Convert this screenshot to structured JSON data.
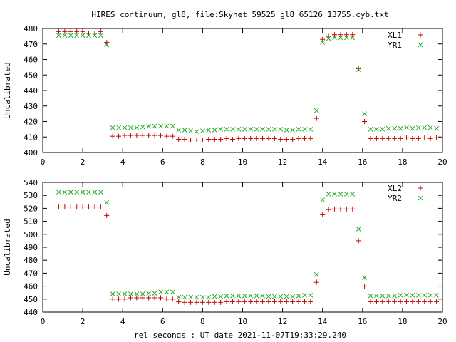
{
  "chart_data": {
    "title": "HIRES continuum, gl8, file:Skynet_59525_gl8_65126_13755.cyb.txt",
    "xlabel": "rel seconds : UT date 2021-11-07T19:33:29.240",
    "x_ticks": [
      0,
      2,
      4,
      6,
      8,
      10,
      12,
      14,
      16,
      18,
      20
    ],
    "xlim": [
      0,
      20
    ],
    "colors": {
      "red": "#cc0000",
      "green": "#22aa22"
    },
    "panels": [
      {
        "type": "scatter",
        "ylabel": "Uncalibrated",
        "ylim": [
          400,
          480
        ],
        "y_ticks": [
          400,
          410,
          420,
          430,
          440,
          450,
          460,
          470,
          480
        ],
        "legend_position": "top-right",
        "series": [
          {
            "name": "XL1",
            "marker": "plus",
            "color": "#cc0000",
            "x": [
              0.8,
              1.1,
              1.4,
              1.7,
              2.0,
              2.3,
              2.6,
              2.9,
              3.2,
              3.5,
              3.8,
              4.1,
              4.4,
              4.7,
              5.0,
              5.3,
              5.6,
              5.9,
              6.2,
              6.5,
              6.8,
              7.1,
              7.4,
              7.7,
              8.0,
              8.3,
              8.6,
              8.9,
              9.2,
              9.5,
              9.8,
              10.1,
              10.4,
              10.7,
              11.0,
              11.3,
              11.6,
              11.9,
              12.2,
              12.5,
              12.8,
              13.1,
              13.4,
              13.7,
              14.0,
              14.3,
              14.6,
              14.9,
              15.2,
              15.5,
              15.8,
              16.1,
              16.4,
              16.7,
              17.0,
              17.3,
              17.6,
              17.9,
              18.2,
              18.5,
              18.8,
              19.1,
              19.4,
              19.7
            ],
            "y": [
              478,
              478,
              478,
              478,
              478,
              477,
              477,
              478,
              471,
              410.5,
              410.5,
              411,
              411,
              411,
              411,
              411,
              411,
              411,
              410.5,
              410.5,
              408.5,
              408.5,
              408,
              408,
              408,
              408.5,
              408.5,
              408.5,
              409,
              408.5,
              409,
              409,
              409,
              409,
              409,
              409,
              409,
              408.5,
              408.5,
              408.5,
              409,
              409,
              409,
              422,
              473,
              475,
              476,
              476,
              476,
              476,
              454,
              420,
              409,
              409,
              409,
              409,
              409,
              409,
              409.5,
              409,
              409,
              409.5,
              409,
              409.5
            ]
          },
          {
            "name": "YR1",
            "marker": "cross",
            "color": "#22aa22",
            "x": [
              0.8,
              1.1,
              1.4,
              1.7,
              2.0,
              2.3,
              2.6,
              2.9,
              3.2,
              3.5,
              3.8,
              4.1,
              4.4,
              4.7,
              5.0,
              5.3,
              5.6,
              5.9,
              6.2,
              6.5,
              6.8,
              7.1,
              7.4,
              7.7,
              8.0,
              8.3,
              8.6,
              8.9,
              9.2,
              9.5,
              9.8,
              10.1,
              10.4,
              10.7,
              11.0,
              11.3,
              11.6,
              11.9,
              12.2,
              12.5,
              12.8,
              13.1,
              13.4,
              13.7,
              14.0,
              14.3,
              14.6,
              14.9,
              15.2,
              15.5,
              15.8,
              16.1,
              16.4,
              16.7,
              17.0,
              17.3,
              17.6,
              17.9,
              18.2,
              18.5,
              18.8,
              19.1,
              19.4,
              19.7
            ],
            "y": [
              475.5,
              475.5,
              475.5,
              475.5,
              475.5,
              475.5,
              475.5,
              475.5,
              469.5,
              416,
              416,
              416,
              416,
              416,
              416.5,
              417,
              417,
              417,
              417,
              417,
              414.5,
              414.5,
              414,
              413.5,
              414,
              414.5,
              414.5,
              415,
              415,
              415,
              415,
              415,
              415,
              415,
              415,
              415,
              415,
              415,
              414.5,
              414.5,
              415,
              415,
              415,
              427,
              471,
              473.5,
              474,
              474,
              474,
              474,
              453.5,
              425,
              415,
              415,
              415,
              415.5,
              415.5,
              415.5,
              416,
              415.5,
              416,
              416,
              416,
              415.5
            ]
          }
        ]
      },
      {
        "type": "scatter",
        "ylabel": "Uncalibrated",
        "ylim": [
          440,
          540
        ],
        "y_ticks": [
          440,
          450,
          460,
          470,
          480,
          490,
          500,
          510,
          520,
          530,
          540
        ],
        "legend_position": "top-right",
        "series": [
          {
            "name": "XL2",
            "marker": "plus",
            "color": "#cc0000",
            "x": [
              0.8,
              1.1,
              1.4,
              1.7,
              2.0,
              2.3,
              2.6,
              2.9,
              3.2,
              3.5,
              3.8,
              4.1,
              4.4,
              4.7,
              5.0,
              5.3,
              5.6,
              5.9,
              6.2,
              6.5,
              6.8,
              7.1,
              7.4,
              7.7,
              8.0,
              8.3,
              8.6,
              8.9,
              9.2,
              9.5,
              9.8,
              10.1,
              10.4,
              10.7,
              11.0,
              11.3,
              11.6,
              11.9,
              12.2,
              12.5,
              12.8,
              13.1,
              13.4,
              13.7,
              14.0,
              14.3,
              14.6,
              14.9,
              15.2,
              15.5,
              15.8,
              16.1,
              16.4,
              16.7,
              17.0,
              17.3,
              17.6,
              17.9,
              18.2,
              18.5,
              18.8,
              19.1,
              19.4,
              19.7
            ],
            "y": [
              521,
              521,
              521,
              521,
              521,
              521,
              521,
              521,
              514.5,
              450,
              450,
              450,
              451,
              451,
              451,
              451,
              451,
              451,
              450,
              450,
              448,
              447.5,
              447.5,
              447.5,
              447.5,
              447.5,
              447.5,
              447.5,
              448,
              448,
              448,
              448,
              448,
              448,
              448,
              448,
              448,
              448,
              448,
              448,
              448,
              448,
              448,
              463,
              515,
              519,
              519.5,
              519.5,
              519.5,
              519.5,
              495,
              460,
              448,
              448,
              448,
              448,
              448,
              448,
              448,
              448,
              448,
              448,
              448,
              448
            ]
          },
          {
            "name": "YR2",
            "marker": "cross",
            "color": "#22aa22",
            "x": [
              0.8,
              1.1,
              1.4,
              1.7,
              2.0,
              2.3,
              2.6,
              2.9,
              3.2,
              3.5,
              3.8,
              4.1,
              4.4,
              4.7,
              5.0,
              5.3,
              5.6,
              5.9,
              6.2,
              6.5,
              6.8,
              7.1,
              7.4,
              7.7,
              8.0,
              8.3,
              8.6,
              8.9,
              9.2,
              9.5,
              9.8,
              10.1,
              10.4,
              10.7,
              11.0,
              11.3,
              11.6,
              11.9,
              12.2,
              12.5,
              12.8,
              13.1,
              13.4,
              13.7,
              14.0,
              14.3,
              14.6,
              14.9,
              15.2,
              15.5,
              15.8,
              16.1,
              16.4,
              16.7,
              17.0,
              17.3,
              17.6,
              17.9,
              18.2,
              18.5,
              18.8,
              19.1,
              19.4,
              19.7
            ],
            "y": [
              532.5,
              532.5,
              532.5,
              532.5,
              532.5,
              532.5,
              532.5,
              532.5,
              524.5,
              454,
              454,
              454,
              454,
              454,
              454,
              454.5,
              454.5,
              455.5,
              455.5,
              455.5,
              451.5,
              451.5,
              451.5,
              451.5,
              451.5,
              451.5,
              452,
              452,
              452.5,
              452.5,
              452.5,
              452.5,
              452.5,
              452.5,
              452.5,
              452,
              452,
              452,
              452,
              452,
              452.5,
              453,
              453,
              469,
              526.5,
              531,
              531,
              531,
              531,
              531,
              504,
              466.5,
              452.5,
              452.5,
              452.5,
              452.5,
              452.5,
              453,
              453,
              453,
              453,
              453,
              453,
              453
            ]
          }
        ]
      }
    ]
  }
}
